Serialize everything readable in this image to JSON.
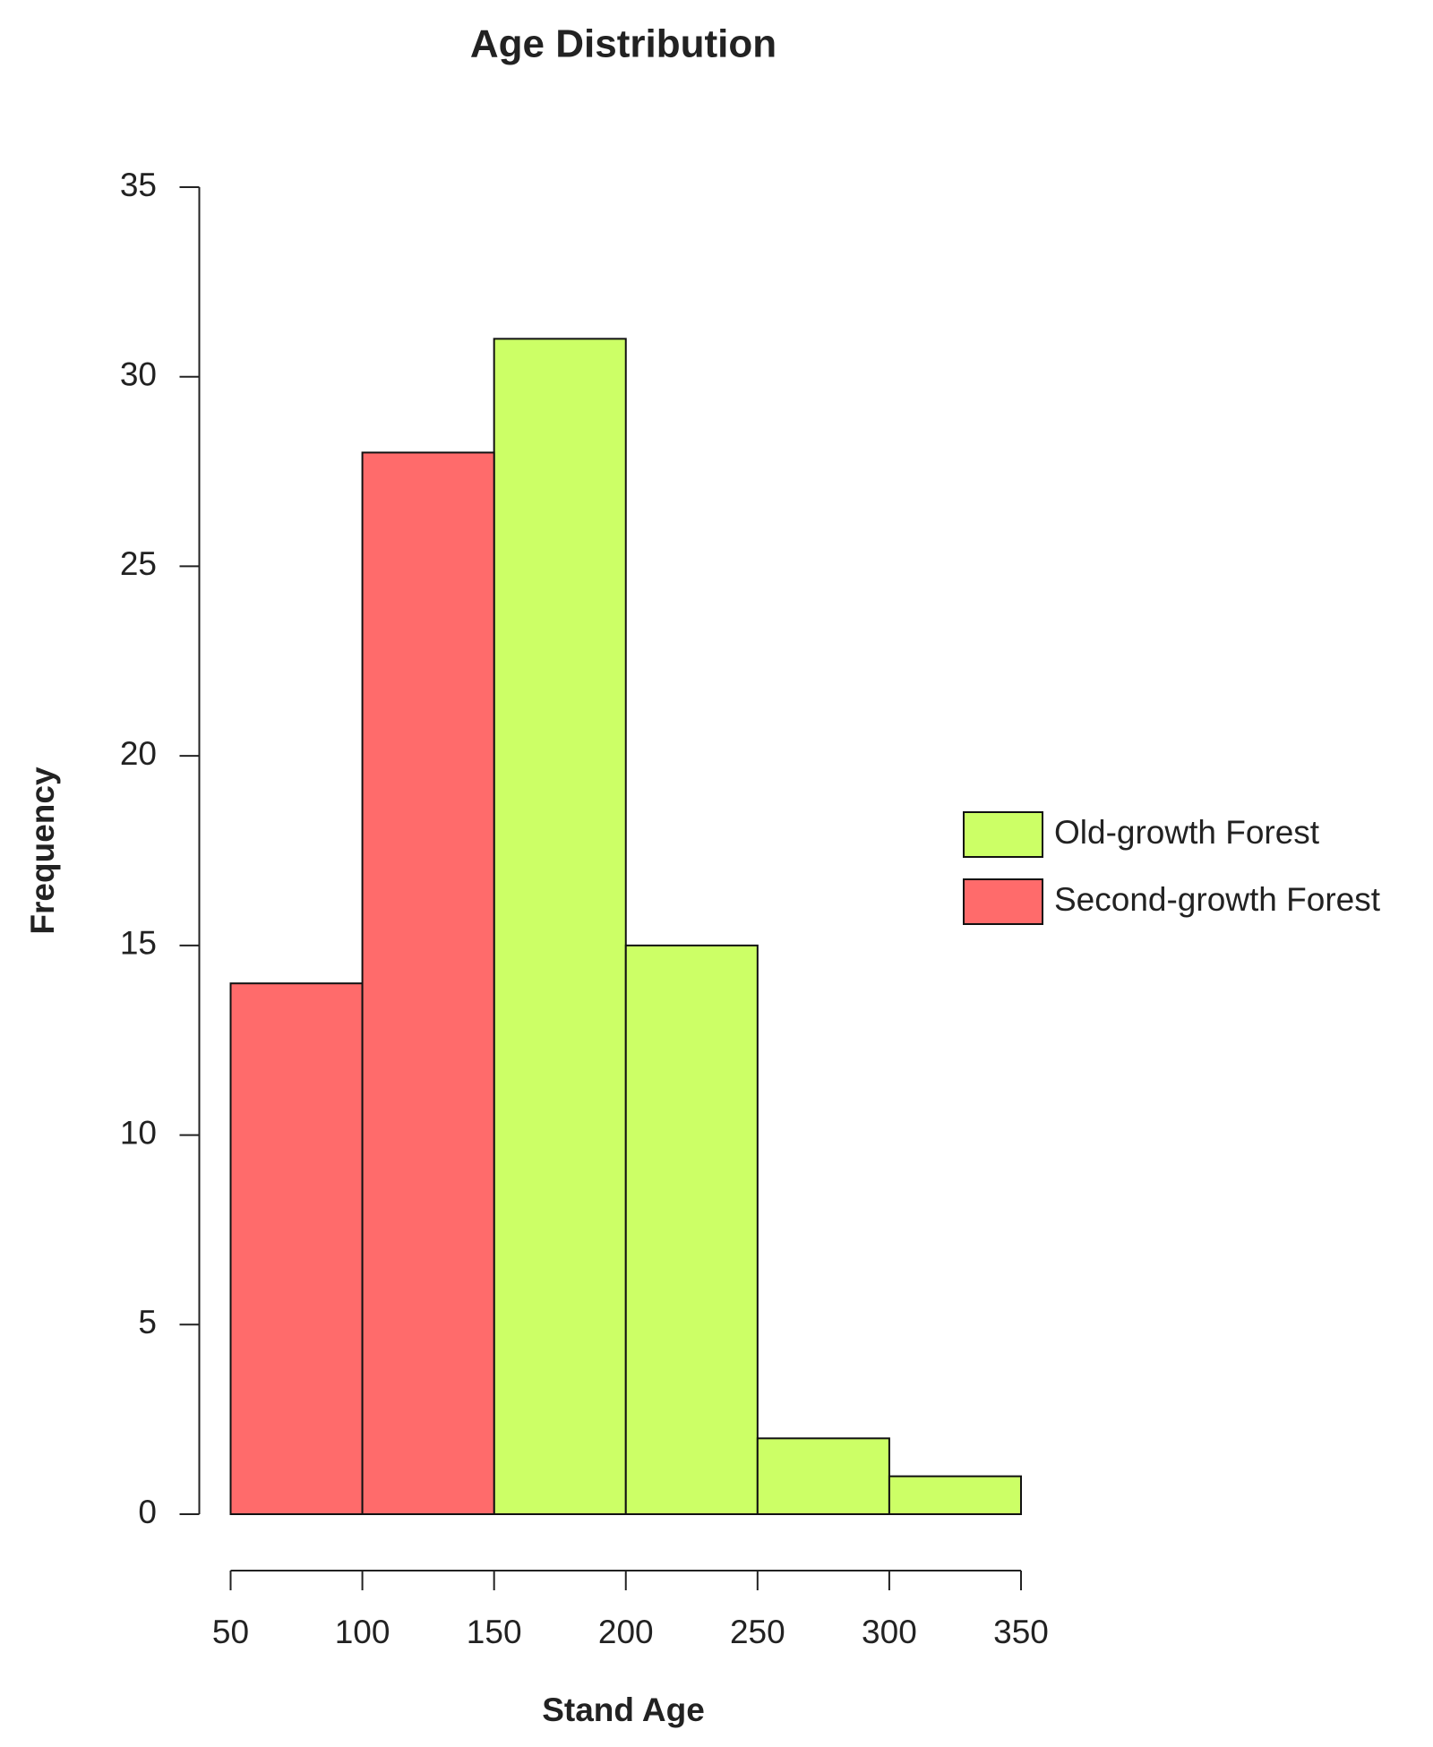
{
  "chart_data": {
    "type": "histogram",
    "title": "Age Distribution",
    "x_label": "Stand Age",
    "y_label": "Frequency",
    "bins": [
      50,
      100,
      150,
      200,
      250,
      300,
      350
    ],
    "series": [
      {
        "name": "Old-growth Forest",
        "color": "#ccff66",
        "counts": [
          null,
          null,
          31,
          15,
          2,
          1
        ]
      },
      {
        "name": "Second-growth Forest",
        "color": "#ff6b6b",
        "counts": [
          14,
          28,
          null,
          null,
          null,
          null
        ]
      }
    ],
    "xlim": [
      50,
      350
    ],
    "xticks": [
      50,
      100,
      150,
      200,
      250,
      300,
      350
    ],
    "ylim": [
      0,
      35
    ],
    "yticks": [
      0,
      5,
      10,
      15,
      20,
      25,
      30,
      35
    ],
    "legend": "right"
  }
}
